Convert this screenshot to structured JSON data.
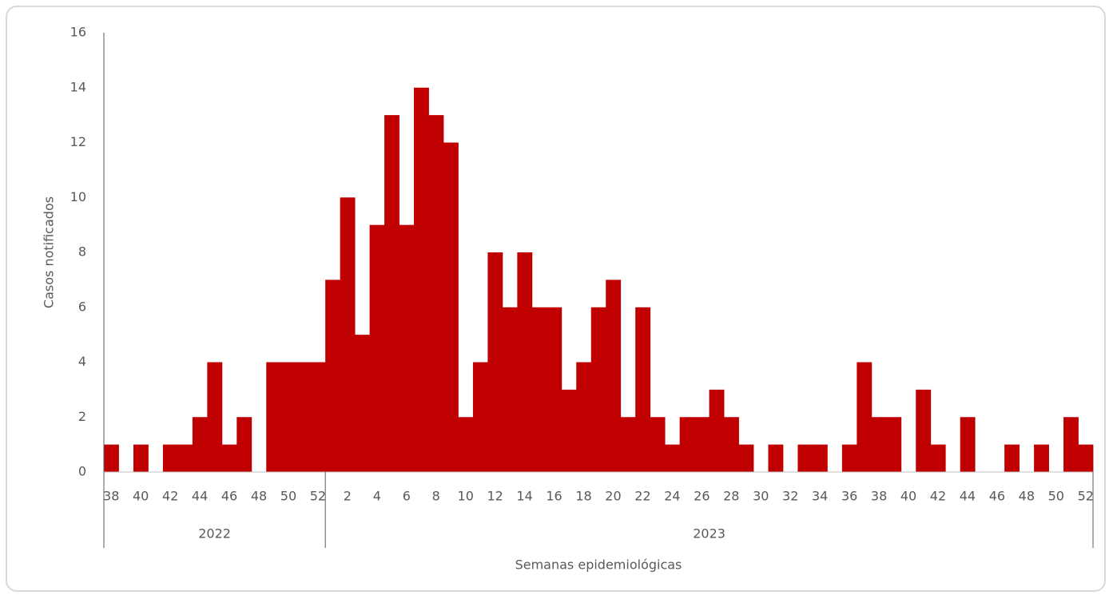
{
  "chart_data": {
    "type": "bar",
    "y_label": "Casos notificados",
    "x_label": "Semanas epidemiológicas",
    "groups": [
      {
        "label": "2022",
        "categories": [
          "38",
          null,
          "40",
          null,
          "42",
          null,
          "44",
          null,
          "46",
          null,
          "48",
          null,
          "50",
          null,
          "52"
        ]
      },
      {
        "label": "2023",
        "categories": [
          null,
          "2",
          null,
          "4",
          null,
          "6",
          null,
          "8",
          null,
          "10",
          null,
          "12",
          null,
          "14",
          null,
          "16",
          null,
          "18",
          null,
          "20",
          null,
          "22",
          null,
          "24",
          null,
          "26",
          null,
          "28",
          null,
          "30",
          null,
          "32",
          null,
          "34",
          null,
          "36",
          null,
          "38",
          null,
          "40",
          null,
          "42",
          null,
          "44",
          null,
          "46",
          null,
          "48",
          null,
          "50",
          null,
          "52"
        ]
      }
    ],
    "values": [
      1,
      0,
      1,
      0,
      1,
      1,
      2,
      4,
      1,
      2,
      0,
      4,
      4,
      4,
      4,
      7,
      10,
      5,
      9,
      13,
      9,
      14,
      13,
      12,
      2,
      4,
      8,
      6,
      8,
      6,
      6,
      3,
      4,
      6,
      7,
      2,
      6,
      2,
      1,
      2,
      2,
      3,
      2,
      1,
      0,
      1,
      0,
      1,
      1,
      0,
      1,
      4,
      2,
      2,
      0,
      3,
      1,
      0,
      2,
      0,
      0,
      1,
      0,
      1,
      0,
      2,
      1
    ],
    "color": "#c00000",
    "ylim": [
      0,
      16
    ],
    "yticks": [
      0,
      2,
      4,
      6,
      8,
      10,
      12,
      14,
      16
    ],
    "grid": false
  }
}
